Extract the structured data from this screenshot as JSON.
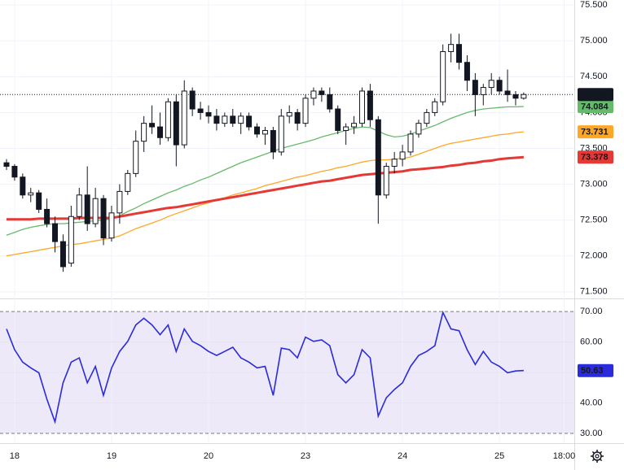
{
  "chart_data": [
    {
      "type": "candlestick",
      "categories": [
        null,
        "18",
        null,
        null,
        null,
        null,
        null,
        null,
        null,
        null,
        null,
        null,
        null,
        "19",
        null,
        null,
        null,
        null,
        null,
        null,
        null,
        null,
        null,
        null,
        null,
        "20",
        null,
        null,
        null,
        null,
        null,
        null,
        null,
        null,
        null,
        null,
        null,
        "23",
        null,
        null,
        null,
        null,
        null,
        null,
        null,
        null,
        null,
        null,
        null,
        "24",
        null,
        null,
        null,
        null,
        null,
        null,
        null,
        null,
        null,
        null,
        null,
        "25",
        null,
        null,
        null,
        null,
        null,
        null,
        null,
        "18:00"
      ],
      "open": [
        73.3,
        73.25,
        73.1,
        72.85,
        72.88,
        72.65,
        72.45,
        72.2,
        71.9,
        72.55,
        72.85,
        72.45,
        72.8,
        72.25,
        72.6,
        72.9,
        73.15,
        73.6,
        73.85,
        73.8,
        73.65,
        74.15,
        73.55,
        74.3,
        74.05,
        74.0,
        73.95,
        73.85,
        73.95,
        73.85,
        73.95,
        73.8,
        73.7,
        73.75,
        73.45,
        73.95,
        74.0,
        73.85,
        74.2,
        74.3,
        74.25,
        74.05,
        73.75,
        73.8,
        73.85,
        74.3,
        73.9,
        72.85,
        73.25,
        73.35,
        73.45,
        73.7,
        73.85,
        74.0,
        74.15,
        74.85,
        74.95,
        74.7,
        74.45,
        74.25,
        74.35,
        74.45,
        74.3,
        74.25,
        74.2,
        null,
        null,
        null,
        null,
        null
      ],
      "high": [
        73.35,
        73.28,
        73.15,
        72.95,
        72.92,
        72.8,
        72.55,
        72.3,
        72.7,
        72.95,
        73.25,
        72.95,
        72.85,
        72.7,
        73.0,
        73.2,
        73.75,
        73.95,
        74.1,
        74.0,
        74.2,
        74.25,
        74.45,
        74.35,
        74.15,
        74.1,
        74.05,
        74.0,
        74.05,
        74.0,
        74.0,
        73.85,
        73.8,
        73.8,
        74.05,
        74.1,
        74.05,
        74.25,
        74.35,
        74.35,
        74.35,
        74.1,
        73.85,
        73.95,
        74.35,
        74.4,
        73.95,
        73.3,
        73.45,
        73.55,
        73.75,
        73.9,
        74.05,
        74.2,
        74.95,
        75.1,
        75.1,
        74.8,
        74.55,
        74.4,
        74.55,
        74.5,
        74.6,
        74.3,
        74.28,
        null,
        null,
        null,
        null,
        null
      ],
      "low": [
        73.2,
        73.05,
        72.8,
        72.75,
        72.6,
        72.4,
        72.05,
        71.78,
        71.85,
        72.5,
        72.35,
        72.4,
        72.15,
        72.2,
        72.45,
        72.85,
        73.1,
        73.45,
        73.7,
        73.55,
        73.6,
        73.25,
        73.5,
        73.95,
        73.9,
        73.85,
        73.75,
        73.8,
        73.8,
        73.7,
        73.75,
        73.65,
        73.55,
        73.35,
        73.4,
        73.85,
        73.75,
        73.8,
        74.1,
        74.15,
        74.0,
        73.7,
        73.55,
        73.7,
        73.8,
        73.8,
        72.45,
        72.8,
        73.15,
        73.25,
        73.4,
        73.65,
        73.8,
        73.95,
        74.1,
        74.7,
        74.6,
        74.3,
        73.95,
        74.1,
        74.25,
        74.25,
        74.15,
        74.1,
        74.18,
        null,
        null,
        null,
        null,
        null
      ],
      "close": [
        73.25,
        73.1,
        72.85,
        72.88,
        72.65,
        72.45,
        72.2,
        71.85,
        72.55,
        72.85,
        72.45,
        72.8,
        72.25,
        72.6,
        72.9,
        73.15,
        73.6,
        73.85,
        73.8,
        73.65,
        74.15,
        73.55,
        74.3,
        74.05,
        74.0,
        73.95,
        73.85,
        73.95,
        73.85,
        73.95,
        73.8,
        73.7,
        73.75,
        73.45,
        73.95,
        74.0,
        73.85,
        74.2,
        74.3,
        74.25,
        74.05,
        73.75,
        73.8,
        73.85,
        74.3,
        73.9,
        72.85,
        73.25,
        73.35,
        73.45,
        73.7,
        73.85,
        74.0,
        74.15,
        74.85,
        74.95,
        74.7,
        74.45,
        74.25,
        74.35,
        74.45,
        74.3,
        74.25,
        74.2,
        74.252,
        null,
        null,
        null,
        null,
        null
      ],
      "color_up": "#ffffff",
      "color_down": "#131722",
      "last_price_color": "#131722",
      "series": [
        {
          "color": "#66bb6a",
          "values": [
            72.29,
            72.33,
            72.37,
            72.4,
            72.42,
            72.44,
            72.45,
            72.45,
            72.46,
            72.47,
            72.48,
            72.49,
            72.5,
            72.52,
            72.56,
            72.62,
            72.67,
            72.73,
            72.78,
            72.83,
            72.88,
            72.92,
            72.97,
            73.01,
            73.06,
            73.1,
            73.15,
            73.2,
            73.25,
            73.3,
            73.34,
            73.38,
            73.42,
            73.46,
            73.5,
            73.53,
            73.56,
            73.59,
            73.62,
            73.66,
            73.69,
            73.72,
            73.75,
            73.78,
            73.8,
            73.79,
            73.74,
            73.69,
            73.66,
            73.67,
            73.7,
            73.74,
            73.78,
            73.82,
            73.87,
            73.92,
            73.96,
            74.0,
            74.03,
            74.05,
            74.06,
            74.07,
            74.08,
            74.08,
            74.084,
            null,
            null,
            null,
            null,
            null
          ]
        },
        {
          "color": "#ffa726",
          "values": [
            72.0,
            72.02,
            72.04,
            72.06,
            72.08,
            72.1,
            72.12,
            72.14,
            72.16,
            72.17,
            72.19,
            72.21,
            72.23,
            72.25,
            72.28,
            72.33,
            72.38,
            72.42,
            72.46,
            72.5,
            72.55,
            72.59,
            72.63,
            72.67,
            72.71,
            72.74,
            72.78,
            72.81,
            72.85,
            72.88,
            72.91,
            72.94,
            72.98,
            73.01,
            73.04,
            73.07,
            73.1,
            73.12,
            73.15,
            73.18,
            73.2,
            73.23,
            73.25,
            73.28,
            73.31,
            73.33,
            73.34,
            73.34,
            73.35,
            73.36,
            73.38,
            73.42,
            73.46,
            73.5,
            73.54,
            73.57,
            73.59,
            73.61,
            73.63,
            73.65,
            73.67,
            73.69,
            73.7,
            73.72,
            73.731,
            null,
            null,
            null,
            null,
            null
          ]
        },
        {
          "color": "#e53935",
          "values": [
            72.51,
            72.51,
            72.51,
            72.51,
            72.52,
            72.52,
            72.52,
            72.52,
            72.52,
            72.53,
            72.53,
            72.53,
            72.53,
            72.53,
            72.55,
            72.57,
            72.59,
            72.61,
            72.63,
            72.65,
            72.67,
            72.68,
            72.7,
            72.72,
            72.74,
            72.76,
            72.78,
            72.8,
            72.82,
            72.84,
            72.86,
            72.88,
            72.9,
            72.92,
            72.94,
            72.96,
            72.98,
            73.0,
            73.02,
            73.04,
            73.05,
            73.07,
            73.09,
            73.11,
            73.13,
            73.14,
            73.15,
            73.16,
            73.17,
            73.18,
            73.2,
            73.21,
            73.22,
            73.23,
            73.24,
            73.26,
            73.27,
            73.29,
            73.3,
            73.32,
            73.33,
            73.35,
            73.36,
            73.37,
            73.378,
            null,
            null,
            null,
            null,
            null
          ]
        }
      ],
      "ylim": [
        71.43,
        75.57
      ],
      "yticks": [
        {
          "value": 71.5,
          "label": "71.500"
        },
        {
          "value": 72,
          "label": "72.000"
        },
        {
          "value": 72.5,
          "label": "72.500"
        },
        {
          "value": 73,
          "label": "73.000"
        },
        {
          "value": 73.5,
          "label": "73.500"
        },
        {
          "value": 74,
          "label": "74.000"
        },
        {
          "value": 74.5,
          "label": "74.500"
        },
        {
          "value": 75,
          "label": "75.000"
        },
        {
          "value": 75.5,
          "label": "75.500"
        }
      ],
      "grid": true
    },
    {
      "type": "line",
      "series": [
        {
          "color": "#2b2bdb",
          "values": [
            64.3,
            57.5,
            53.4,
            51.5,
            49.9,
            41.2,
            33.8,
            46.6,
            53.4,
            54.8,
            46.6,
            52.0,
            42.5,
            51.5,
            56.9,
            60.2,
            65.6,
            67.8,
            65.6,
            62.4,
            65.6,
            56.9,
            64.3,
            60.2,
            58.8,
            56.9,
            55.6,
            56.9,
            58.3,
            54.8,
            53.4,
            51.5,
            52.0,
            42.5,
            58.0,
            57.5,
            54.8,
            61.6,
            60.2,
            60.7,
            58.8,
            49.3,
            46.6,
            49.3,
            57.5,
            54.8,
            35.7,
            41.7,
            44.4,
            46.6,
            52.0,
            55.6,
            56.9,
            58.8,
            69.7,
            64.3,
            63.7,
            57.5,
            52.6,
            56.9,
            53.4,
            52.0,
            49.9,
            50.5,
            50.63,
            null,
            null,
            null,
            null,
            null
          ]
        }
      ],
      "ylim": [
        26,
        73.5
      ],
      "yticks": [
        {
          "value": 30,
          "label": "30.00"
        },
        {
          "value": 40,
          "label": "40.00"
        },
        {
          "value": 50,
          "label": "50.00"
        },
        {
          "value": 60,
          "label": "60.00"
        },
        {
          "value": 70,
          "label": "70.00"
        }
      ],
      "band_color": "#ede9f8",
      "grid": true
    }
  ]
}
